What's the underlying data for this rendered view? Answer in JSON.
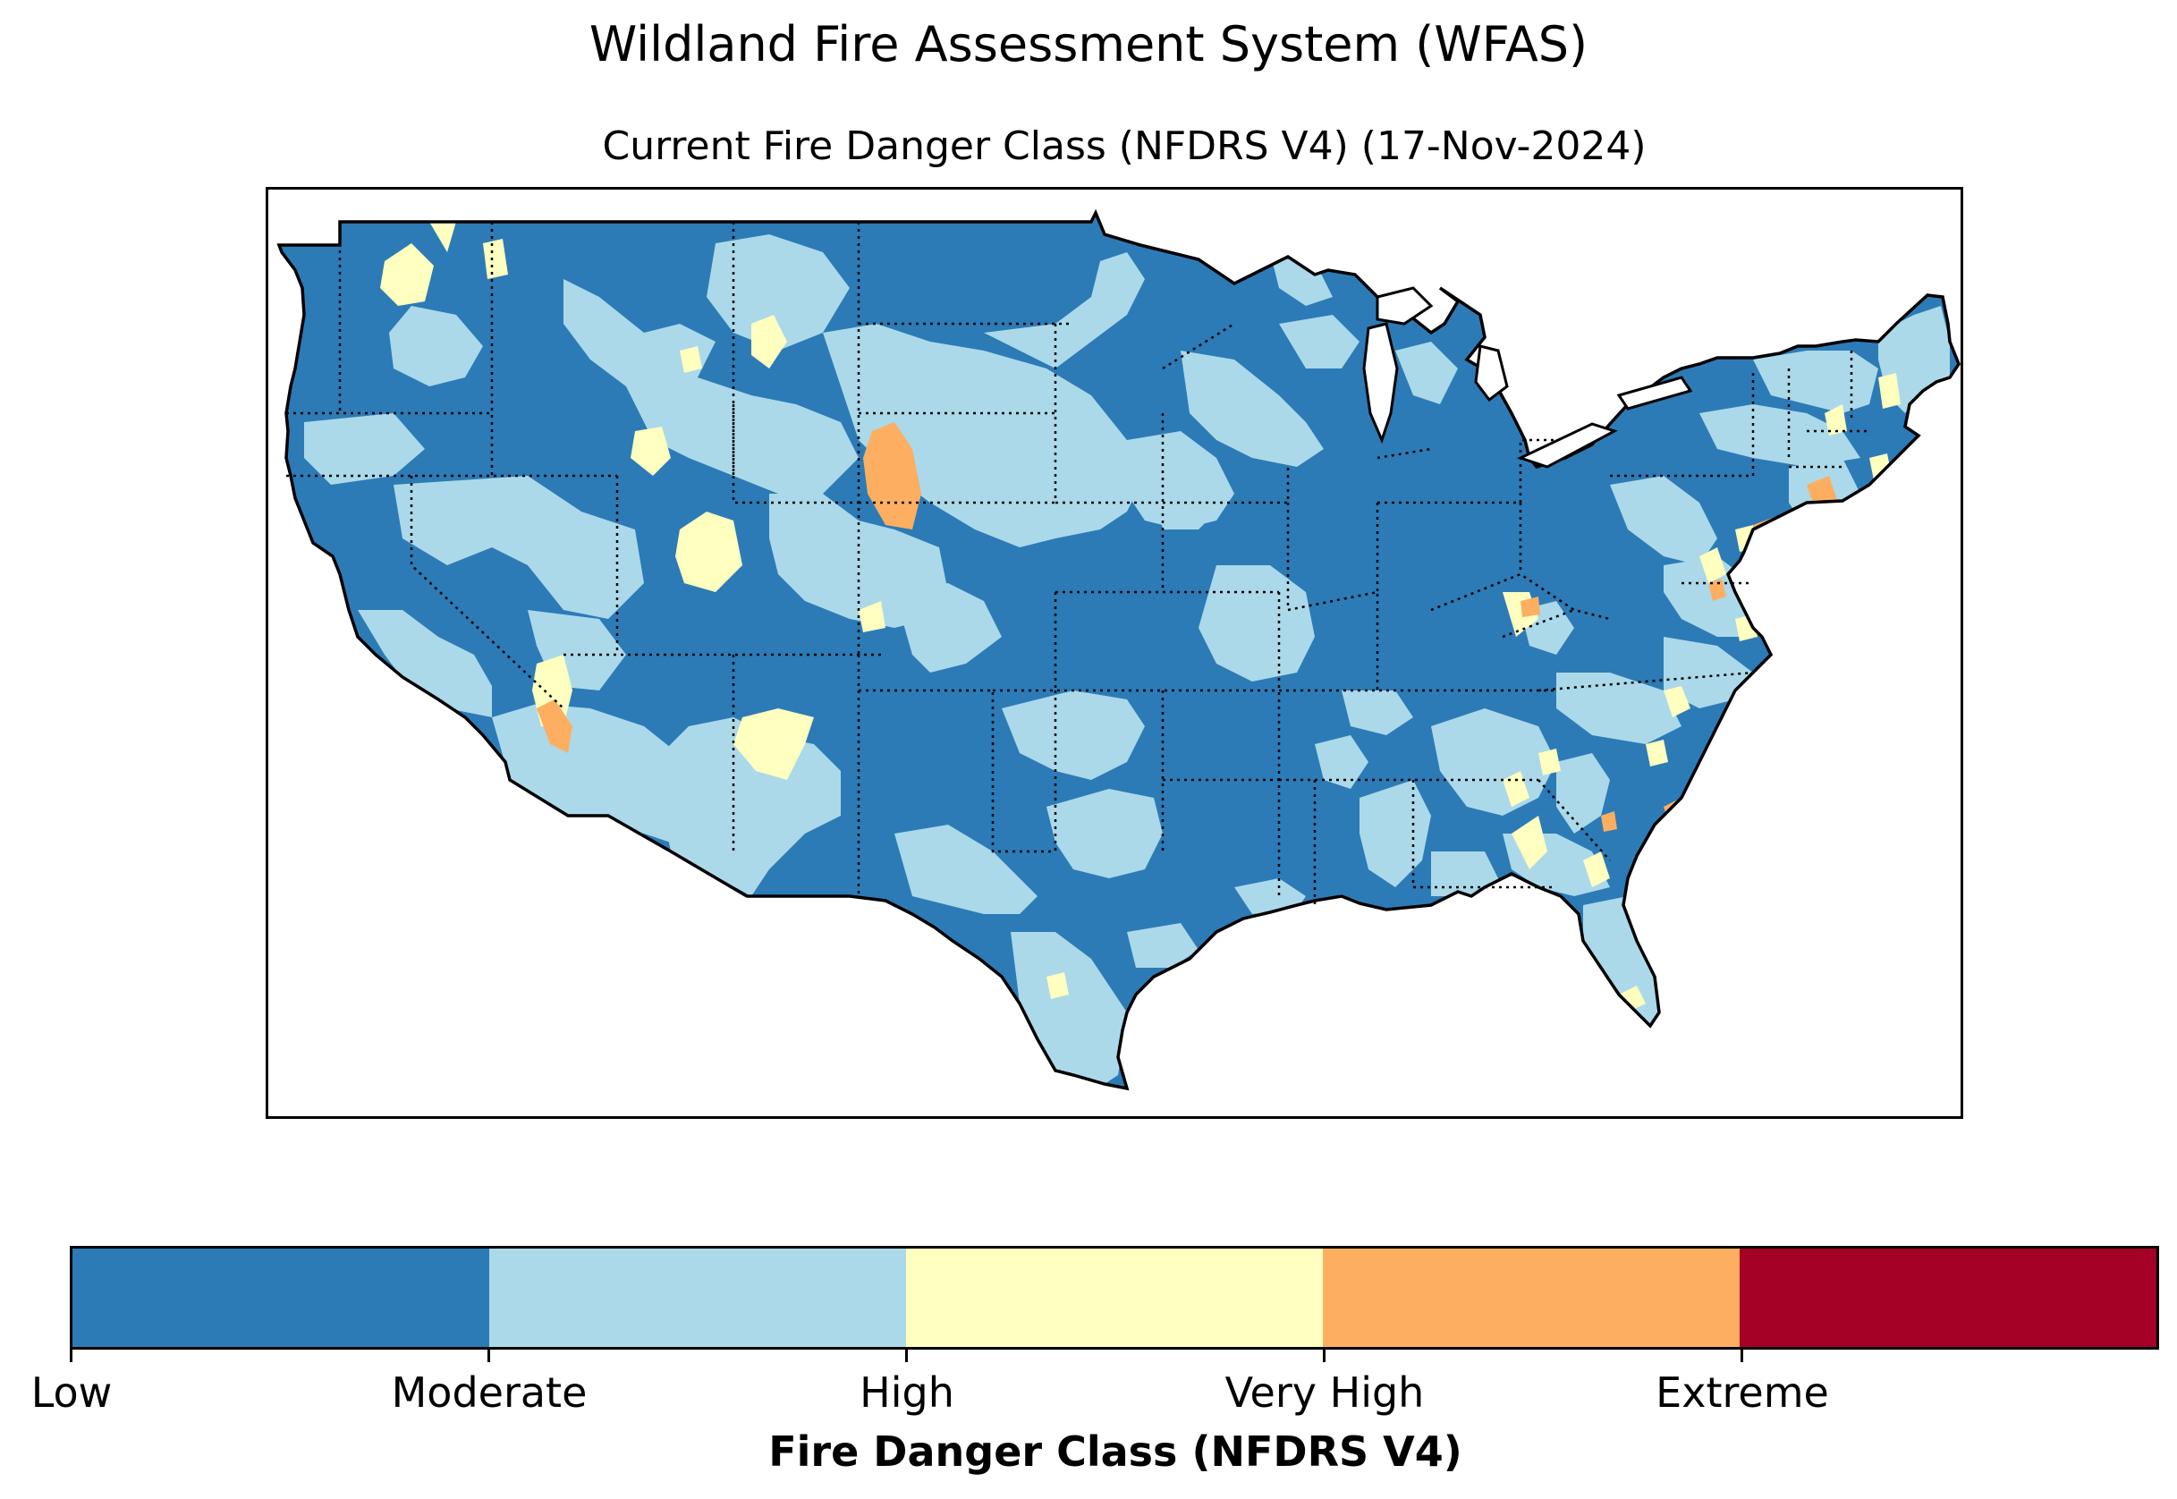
{
  "title": "Wildland Fire Assessment System (WFAS)",
  "subtitle": "Current Fire Danger Class (NFDRS V4) (17-Nov-2024)",
  "map": {
    "region": "Contiguous United States",
    "colors": {
      "low": "#2c7bb6",
      "moderate": "#abd9e9",
      "high": "#ffffbf",
      "very_high": "#fdae61",
      "extreme": "#a50026"
    }
  },
  "legend": {
    "title": "Fire Danger Class (NFDRS V4)",
    "classes": [
      {
        "label": "Low",
        "color": "#2c7bb6"
      },
      {
        "label": "Moderate",
        "color": "#abd9e9"
      },
      {
        "label": "High",
        "color": "#ffffbf"
      },
      {
        "label": "Very High",
        "color": "#fdae61"
      },
      {
        "label": "Extreme",
        "color": "#a50026"
      }
    ]
  }
}
